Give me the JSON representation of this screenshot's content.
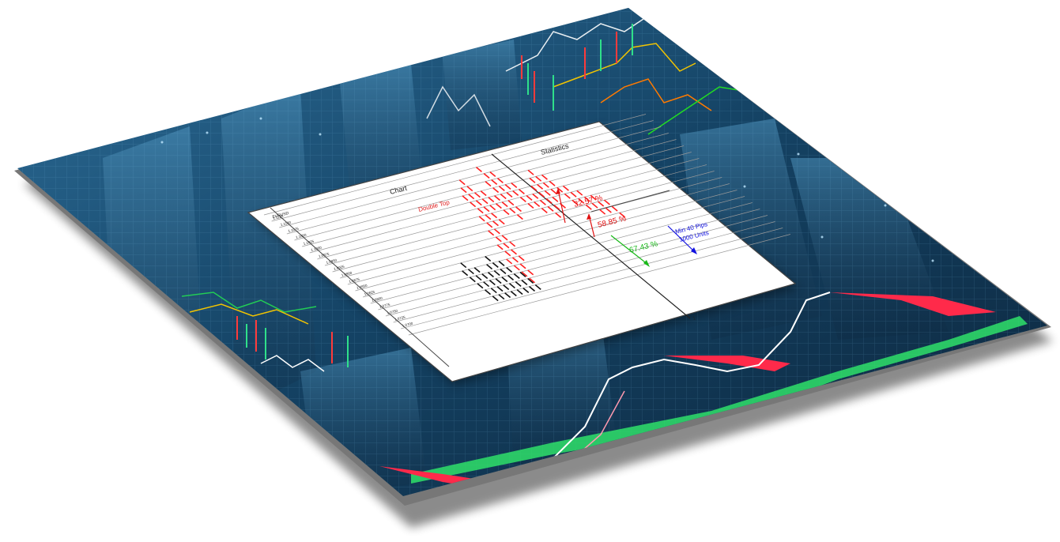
{
  "chart": {
    "title": "Chart",
    "symbol": "EURUSD",
    "pattern_label": "Double Top",
    "price_ticks": [
      "1.1125",
      "1.1100",
      "1.1075",
      "1.1050",
      "1.1025",
      "1.1000",
      "1.0975",
      "1.0950",
      "1.0925",
      "1.0900",
      "1.0875",
      "1.0850",
      "1.0825",
      "1.0800",
      "1.0775",
      "1.0750",
      "1.0725",
      "1.0700"
    ]
  },
  "statistics": {
    "title": "Statistics",
    "up_strong_pct": "32.57 %",
    "up_pct": "58.85 %",
    "down_pct": "67.43 %",
    "target_label_line1": "Min 40 Pips",
    "target_label_line2": "1000 Units",
    "column_number": "1"
  },
  "colors": {
    "bg_dark": "#0d2a45",
    "bg_mid": "#1d5a82",
    "bullish": "#ff2020",
    "bearish": "#111111",
    "green": "#22cc22",
    "blue": "#1010e0",
    "red_arrow": "#e01010"
  }
}
